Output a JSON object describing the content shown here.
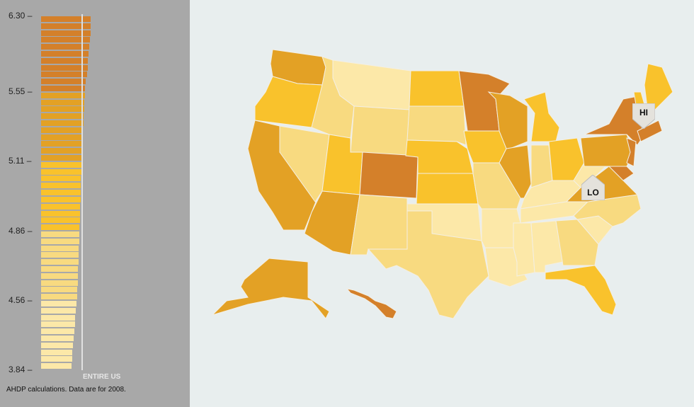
{
  "legend": {
    "ticks": [
      "6.30",
      "5.55",
      "5.11",
      "4.86",
      "4.56",
      "3.84"
    ],
    "entire_us_label": "ENTIRE US",
    "source_note": "AHDP calculations. Data are for 2008.",
    "colors": [
      "#d4802a",
      "#e3a125",
      "#f9c22c",
      "#f8da80",
      "#fce8a8"
    ]
  },
  "chart_data": {
    "type": "bar",
    "orientation": "horizontal",
    "ylim": [
      3.84,
      6.3
    ],
    "group_breaks": [
      6.3,
      5.55,
      5.11,
      4.86,
      4.56,
      3.84
    ],
    "group_sizes": [
      11,
      10,
      10,
      10,
      10
    ],
    "values": [
      6.3,
      6.28,
      6.26,
      6.24,
      6.1,
      6.0,
      5.95,
      5.9,
      5.8,
      5.7,
      5.6,
      5.55,
      5.5,
      5.45,
      5.4,
      5.35,
      5.3,
      5.25,
      5.2,
      5.15,
      5.12,
      5.11,
      5.08,
      5.06,
      5.04,
      5.01,
      4.98,
      4.95,
      4.92,
      4.89,
      4.86,
      4.83,
      4.8,
      4.77,
      4.74,
      4.71,
      4.68,
      4.65,
      4.62,
      4.59,
      4.56,
      4.48,
      4.4,
      4.32,
      4.25,
      4.18,
      4.11,
      4.04,
      3.97,
      3.9,
      3.84
    ]
  },
  "map": {
    "states": {
      "WA": 2,
      "OR": 3,
      "CA": 2,
      "NV": 4,
      "ID": 4,
      "MT": 5,
      "WY": 4,
      "UT": 3,
      "AZ": 2,
      "CO": 1,
      "NM": 4,
      "ND": 3,
      "SD": 4,
      "NE": 3,
      "KS": 3,
      "OK": 5,
      "TX": 4,
      "MN": 1,
      "IA": 3,
      "MO": 4,
      "AR": 5,
      "LA": 5,
      "WI": 2,
      "IL": 2,
      "MI": 3,
      "IN": 4,
      "OH": 3,
      "KY": 5,
      "TN": 5,
      "MS": 5,
      "AL": 5,
      "GA": 4,
      "FL": 3,
      "SC": 5,
      "NC": 4,
      "VA": 2,
      "WV": 5,
      "PA": 2,
      "NY": 1,
      "NJ": 1,
      "MD": 1,
      "VTNH": 3,
      "ME": 3,
      "SNE": 1,
      "AK": 2,
      "HI": 1
    },
    "hi_label": "HI",
    "lo_label": "LO"
  }
}
